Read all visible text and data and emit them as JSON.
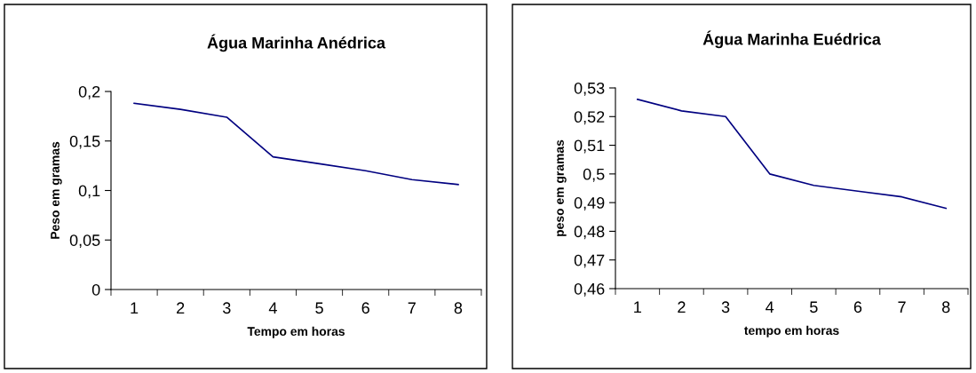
{
  "chart_data": [
    {
      "type": "line",
      "title": "Água Marinha Anédrica",
      "xlabel": "Tempo em horas",
      "ylabel": "Peso em gramas",
      "categories": [
        "1",
        "2",
        "3",
        "4",
        "5",
        "6",
        "7",
        "8"
      ],
      "series": [
        {
          "color": "#000080",
          "values": [
            0.188,
            0.182,
            0.174,
            0.134,
            0.127,
            0.12,
            0.111,
            0.106
          ]
        }
      ],
      "ylim": [
        0,
        0.2
      ],
      "yticks": [
        0,
        {
          "value": 0.05,
          "label": "0,05"
        },
        {
          "value": 0.1,
          "label": "0,1"
        },
        {
          "value": 0.15,
          "label": "0,15"
        },
        {
          "value": 0.2,
          "label": "0,2"
        }
      ],
      "grid": false,
      "legend": false
    },
    {
      "type": "line",
      "title": "Água Marinha Euédrica",
      "xlabel": "tempo em horas",
      "ylabel": "peso em gramas",
      "categories": [
        "1",
        "2",
        "3",
        "4",
        "5",
        "6",
        "7",
        "8"
      ],
      "series": [
        {
          "color": "#000080",
          "values": [
            0.526,
            0.522,
            0.52,
            0.5,
            0.496,
            0.494,
            0.492,
            0.488
          ]
        }
      ],
      "ylim": [
        0.46,
        0.53
      ],
      "yticks": [
        {
          "value": 0.46,
          "label": "0,46"
        },
        {
          "value": 0.47,
          "label": "0,47"
        },
        {
          "value": 0.48,
          "label": "0,48"
        },
        {
          "value": 0.49,
          "label": "0,49"
        },
        {
          "value": 0.5,
          "label": "0,5"
        },
        {
          "value": 0.51,
          "label": "0,51"
        },
        {
          "value": 0.52,
          "label": "0,52"
        },
        {
          "value": 0.53,
          "label": "0,53"
        }
      ],
      "grid": false,
      "legend": false
    }
  ]
}
